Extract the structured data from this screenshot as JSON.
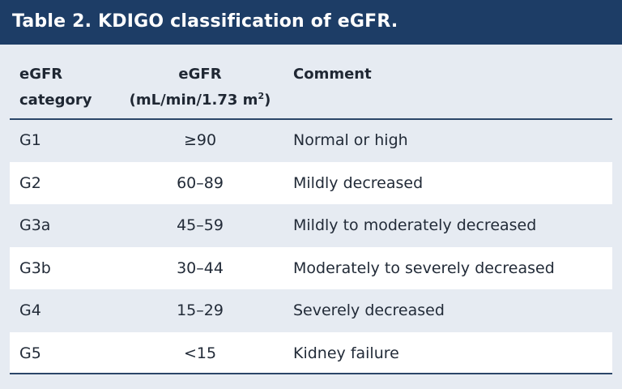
{
  "title": "Table 2. KDIGO classification of eGFR.",
  "headers": {
    "category_line1": "eGFR",
    "category_line2": "category",
    "value_line1": "eGFR",
    "value_line2_prefix": "(mL/min/1.73 m",
    "value_line2_sup": "2",
    "value_line2_suffix": ")",
    "comment": "Comment"
  },
  "rows": [
    {
      "category": "G1",
      "egfr": "≥90",
      "comment": "Normal or high"
    },
    {
      "category": "G2",
      "egfr": "60–89",
      "comment": "Mildly decreased"
    },
    {
      "category": "G3a",
      "egfr": "45–59",
      "comment": "Mildly to moderately decreased"
    },
    {
      "category": "G3b",
      "egfr": "30–44",
      "comment": "Moderately to severely decreased"
    },
    {
      "category": "G4",
      "egfr": "15–29",
      "comment": "Severely decreased"
    },
    {
      "category": "G5",
      "egfr": "<15",
      "comment": "Kidney failure"
    }
  ],
  "colors": {
    "title_background": "#1d3d66",
    "page_background": "#e6ebf2",
    "alternate_row_background": "#ffffff",
    "rule": "#2b4669"
  }
}
